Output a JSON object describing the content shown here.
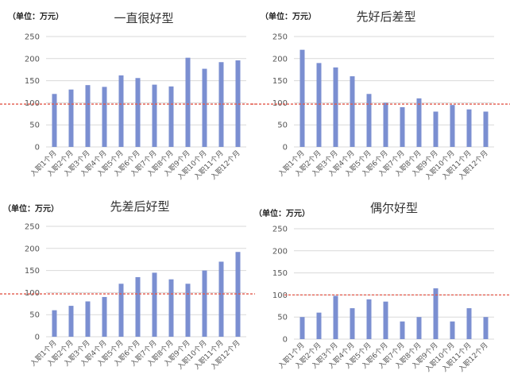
{
  "chart_data": [
    {
      "type": "bar",
      "title": "一直很好型",
      "unit_label": "（单位：万元）",
      "categories": [
        "入职1个月",
        "入职2个月",
        "入职3个月",
        "入职4个月",
        "入职5个月",
        "入职6个月",
        "入职7个月",
        "入职8个月",
        "入职9个月",
        "入职10个月",
        "入职11个月",
        "入职12个月"
      ],
      "values": [
        120,
        130,
        140,
        136,
        162,
        156,
        141,
        137,
        202,
        177,
        192,
        196
      ],
      "yticks": [
        0,
        50,
        100,
        150,
        200,
        250
      ],
      "ylim": [
        0,
        250
      ],
      "reference_line": 97,
      "grid": true,
      "bar_color": "#7b8fd1",
      "grid_color": "#d9d9d9",
      "reference_color": "#e2584a"
    },
    {
      "type": "bar",
      "title": "先好后差型",
      "unit_label": "（单位：万元）",
      "categories": [
        "入职1个月",
        "入职2个月",
        "入职3个月",
        "入职4个月",
        "入职5个月",
        "入职6个月",
        "入职7个月",
        "入职8个月",
        "入职9个月",
        "入职10个月",
        "入职11个月",
        "入职12个月"
      ],
      "values": [
        220,
        190,
        180,
        160,
        120,
        100,
        90,
        110,
        80,
        95,
        85,
        80
      ],
      "yticks": [
        0,
        50,
        100,
        150,
        200,
        250
      ],
      "ylim": [
        0,
        250
      ],
      "reference_line": 97,
      "grid": true,
      "bar_color": "#7b8fd1",
      "grid_color": "#d9d9d9",
      "reference_color": "#e2584a"
    },
    {
      "type": "bar",
      "title": "先差后好型",
      "unit_label": "（单位：万元）",
      "categories": [
        "入职1个月",
        "入职2个月",
        "入职3个月",
        "入职4个月",
        "入职5个月",
        "入职6个月",
        "入职7个月",
        "入职8个月",
        "入职9个月",
        "入职10个月",
        "入职11个月",
        "入职12个月"
      ],
      "values": [
        60,
        70,
        80,
        90,
        120,
        135,
        145,
        130,
        120,
        150,
        170,
        192
      ],
      "yticks": [
        0,
        50,
        100,
        150,
        200,
        250
      ],
      "ylim": [
        0,
        250
      ],
      "reference_line": 97,
      "grid": true,
      "bar_color": "#7b8fd1",
      "grid_color": "#d9d9d9",
      "reference_color": "#e2584a"
    },
    {
      "type": "bar",
      "title": "偶尔好型",
      "unit_label": "（单位：万元）",
      "categories": [
        "入职1个月",
        "入职2个月",
        "入职3个月",
        "入职4个月",
        "入职5个月",
        "入职6个月",
        "入职7个月",
        "入职8个月",
        "入职9个月",
        "入职10个月",
        "入职11个月",
        "入职12个月"
      ],
      "values": [
        50,
        60,
        98,
        70,
        90,
        85,
        40,
        50,
        115,
        40,
        70,
        50
      ],
      "yticks": [
        0,
        50,
        100,
        150,
        200,
        250
      ],
      "ylim": [
        0,
        250
      ],
      "reference_line": 100,
      "grid": true,
      "bar_color": "#7b8fd1",
      "grid_color": "#d9d9d9",
      "reference_color": "#e2584a"
    }
  ]
}
